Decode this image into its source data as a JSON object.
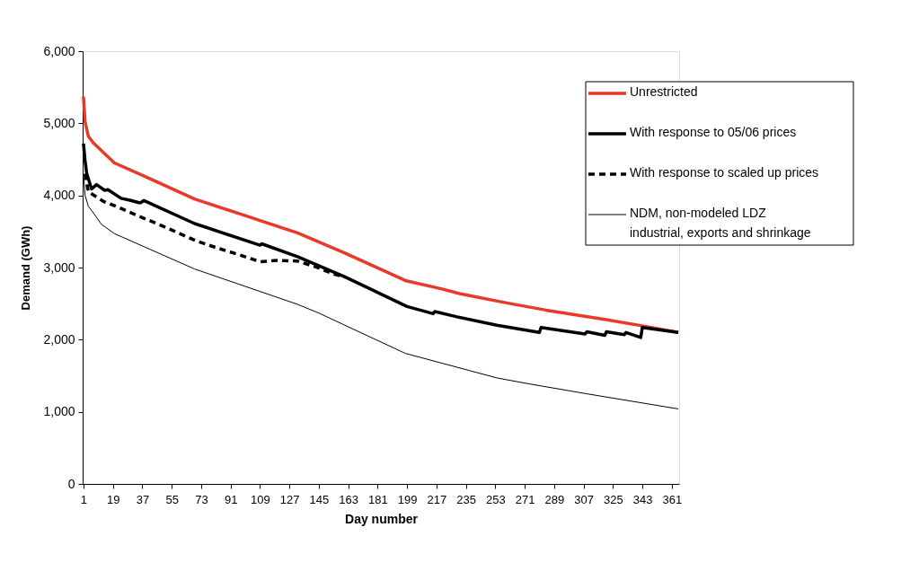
{
  "chart_data": {
    "type": "line",
    "xlabel": "Day number",
    "ylabel": "Demand (GWh)",
    "xlim": [
      0.5,
      365.5
    ],
    "xticks": [
      1,
      19,
      37,
      55,
      73,
      91,
      109,
      127,
      145,
      163,
      181,
      199,
      217,
      235,
      253,
      271,
      289,
      307,
      325,
      343,
      361
    ],
    "ylim": [
      0,
      6000
    ],
    "yticks": [
      0,
      {
        "value": 1000,
        "label": "1,000"
      },
      {
        "value": 2000,
        "label": "2,000"
      },
      {
        "value": 3000,
        "label": "3,000"
      },
      {
        "value": 4000,
        "label": "4,000"
      },
      {
        "value": 5000,
        "label": "5,000"
      },
      {
        "value": 6000,
        "label": "6,000"
      }
    ],
    "legend": "top right",
    "series": [
      {
        "name": "Unrestricted",
        "color": "#e8392b",
        "line_style": "solid",
        "x": [
          1,
          2,
          4,
          7,
          12,
          20,
          40,
          69,
          100,
          132,
          161,
          198,
          221,
          231,
          260,
          284,
          320,
          346,
          365
        ],
        "values": [
          5370,
          5020,
          4820,
          4730,
          4620,
          4450,
          4250,
          3950,
          3720,
          3480,
          3200,
          2820,
          2700,
          2640,
          2510,
          2410,
          2280,
          2180,
          2100
        ]
      },
      {
        "name": "With response to 05/06 prices",
        "color": "#000000",
        "line_style": "solid",
        "x": [
          1,
          2,
          3,
          6,
          9,
          14,
          16,
          24,
          30,
          35,
          36,
          38,
          69,
          109,
          110,
          132,
          161,
          199,
          215,
          216,
          229,
          254,
          280,
          281,
          308,
          309,
          320,
          321,
          332,
          333,
          342,
          343,
          365
        ],
        "values": [
          4720,
          4480,
          4300,
          4090,
          4150,
          4070,
          4080,
          3960,
          3930,
          3900,
          3900,
          3930,
          3610,
          3310,
          3330,
          3150,
          2870,
          2460,
          2360,
          2390,
          2320,
          2200,
          2100,
          2170,
          2080,
          2110,
          2060,
          2110,
          2070,
          2100,
          2030,
          2170,
          2100
        ]
      },
      {
        "name": "With response to scaled up prices",
        "color": "#000000",
        "line_style": "dashed",
        "x": [
          2,
          4,
          13,
          23,
          35,
          46,
          58,
          70,
          83,
          96,
          109,
          120,
          132,
          143,
          154,
          161
        ],
        "values": [
          4300,
          4050,
          3920,
          3830,
          3710,
          3610,
          3490,
          3370,
          3270,
          3180,
          3080,
          3100,
          3090,
          3010,
          2910,
          2870
        ]
      },
      {
        "name": "NDM, non-modeled LDZ\nindustrial, exports and shrinkage",
        "color": "#000000",
        "line_style": "solid",
        "x": [
          1,
          2,
          4,
          7,
          12,
          20,
          69,
          132,
          145,
          161,
          198,
          221,
          254,
          273,
          309,
          365
        ],
        "values": [
          4300,
          4000,
          3850,
          3760,
          3600,
          3470,
          2980,
          2490,
          2370,
          2200,
          1810,
          1670,
          1470,
          1390,
          1250,
          1040
        ]
      }
    ]
  }
}
